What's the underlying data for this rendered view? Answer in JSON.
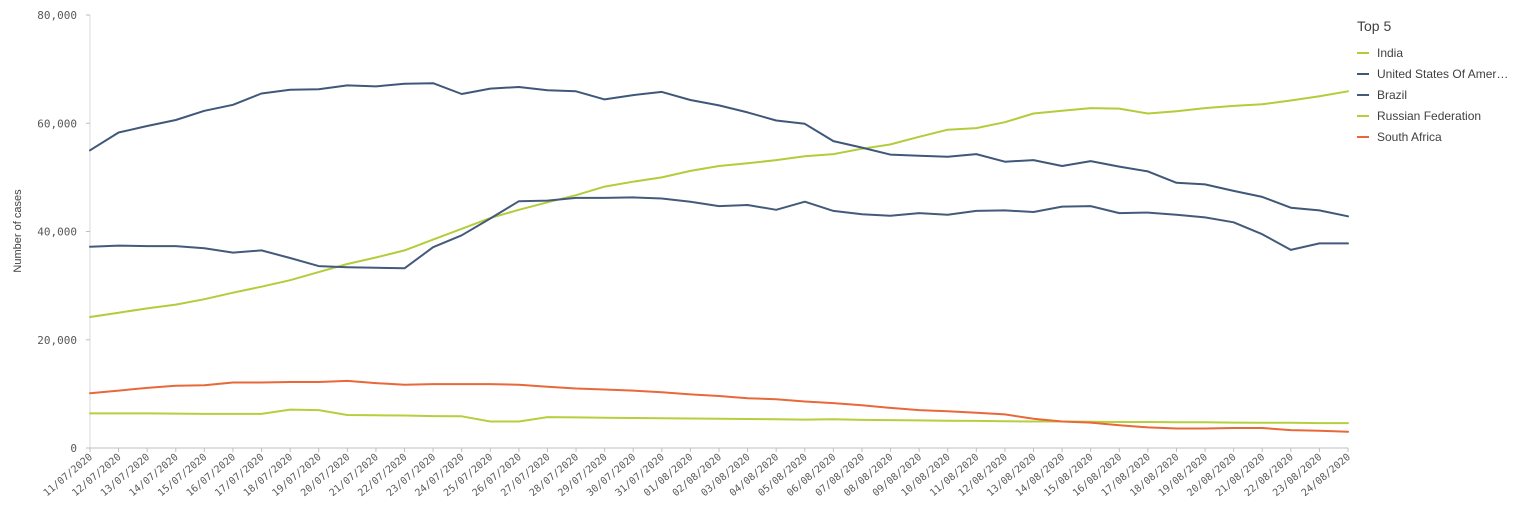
{
  "chart_data": {
    "type": "line",
    "ylabel": "Number of cases",
    "xlabel": "",
    "ylim": [
      0,
      80000
    ],
    "yticks": [
      0,
      20000,
      40000,
      60000,
      80000
    ],
    "ytick_labels": [
      "0",
      "20,000",
      "40,000",
      "60,000",
      "80,000"
    ],
    "grid": false,
    "legend_position": "right",
    "categories": [
      "11/07/2020",
      "12/07/2020",
      "13/07/2020",
      "14/07/2020",
      "15/07/2020",
      "16/07/2020",
      "17/07/2020",
      "18/07/2020",
      "19/07/2020",
      "20/07/2020",
      "21/07/2020",
      "22/07/2020",
      "23/07/2020",
      "24/07/2020",
      "25/07/2020",
      "26/07/2020",
      "27/07/2020",
      "28/07/2020",
      "29/07/2020",
      "30/07/2020",
      "31/07/2020",
      "01/08/2020",
      "02/08/2020",
      "03/08/2020",
      "04/08/2020",
      "05/08/2020",
      "06/08/2020",
      "07/08/2020",
      "08/08/2020",
      "09/08/2020",
      "10/08/2020",
      "11/08/2020",
      "12/08/2020",
      "13/08/2020",
      "14/08/2020",
      "15/08/2020",
      "16/08/2020",
      "17/08/2020",
      "18/08/2020",
      "19/08/2020",
      "20/08/2020",
      "21/08/2020",
      "22/08/2020",
      "23/08/2020",
      "24/08/2020"
    ],
    "series": [
      {
        "name": "India",
        "color": "#b2cd3a",
        "values": [
          24200,
          25000,
          25800,
          26500,
          27500,
          28700,
          29800,
          31000,
          32500,
          34000,
          35200,
          36500,
          38500,
          40500,
          42500,
          44000,
          45400,
          46700,
          48300,
          49200,
          50000,
          51200,
          52100,
          52600,
          53200,
          53900,
          54300,
          55300,
          56100,
          57500,
          58800,
          59100,
          60200,
          61800,
          62300,
          62800,
          62700,
          61800,
          62200,
          62800,
          63200,
          63500,
          64200,
          65000,
          65900
        ]
      },
      {
        "name": "United States Of America",
        "color": "#3f5879",
        "values": [
          55000,
          58300,
          59500,
          60600,
          62300,
          63400,
          65500,
          66200,
          66300,
          67000,
          66800,
          67300,
          67400,
          65400,
          66400,
          66700,
          66100,
          65900,
          64400,
          65200,
          65800,
          64300,
          63300,
          62000,
          60500,
          59900,
          56700,
          55500,
          54200,
          54000,
          53800,
          54300,
          52900,
          53200,
          52100,
          53000,
          52000,
          51100,
          49000,
          48700,
          47500,
          46400,
          44400,
          43900,
          42800
        ]
      },
      {
        "name": "Brazil",
        "color": "#445a7b",
        "values": [
          37200,
          37400,
          37300,
          37300,
          36900,
          36100,
          36500,
          35100,
          33600,
          33400,
          33300,
          33200,
          37100,
          39300,
          42400,
          45600,
          45700,
          46200,
          46200,
          46300,
          46100,
          45500,
          44700,
          44900,
          44000,
          45500,
          43800,
          43200,
          42900,
          43400,
          43100,
          43800,
          43900,
          43600,
          44600,
          44700,
          43400,
          43500,
          43100,
          42600,
          41700,
          39500,
          36600,
          37800,
          37800
        ]
      },
      {
        "name": "Russian Federation",
        "color": "#b6cf3f",
        "values": [
          6400,
          6400,
          6400,
          6350,
          6300,
          6300,
          6300,
          7100,
          7000,
          6100,
          6050,
          6000,
          5900,
          5850,
          4900,
          4900,
          5700,
          5650,
          5600,
          5550,
          5500,
          5450,
          5400,
          5350,
          5300,
          5250,
          5300,
          5200,
          5150,
          5100,
          5050,
          5000,
          4950,
          4900,
          4900,
          4850,
          4800,
          4800,
          4750,
          4750,
          4700,
          4650,
          4650,
          4600,
          4600
        ]
      },
      {
        "name": "South Africa",
        "color": "#e8683a",
        "values": [
          10100,
          10600,
          11100,
          11500,
          11600,
          12100,
          12100,
          12200,
          12200,
          12400,
          12000,
          11700,
          11800,
          11800,
          11800,
          11700,
          11300,
          11000,
          10800,
          10600,
          10300,
          9900,
          9600,
          9200,
          9000,
          8600,
          8300,
          7900,
          7400,
          7000,
          6800,
          6500,
          6200,
          5400,
          4900,
          4700,
          4200,
          3800,
          3600,
          3600,
          3700,
          3700,
          3300,
          3200,
          3000
        ]
      }
    ]
  },
  "legend": {
    "title": "Top 5",
    "items": [
      {
        "label": "India",
        "color": "#b2cd3a"
      },
      {
        "label": "United States Of Amer…",
        "color": "#3f5879"
      },
      {
        "label": "Brazil",
        "color": "#445a7b"
      },
      {
        "label": "Russian Federation",
        "color": "#b6cf3f"
      },
      {
        "label": "South Africa",
        "color": "#e8683a"
      }
    ]
  }
}
